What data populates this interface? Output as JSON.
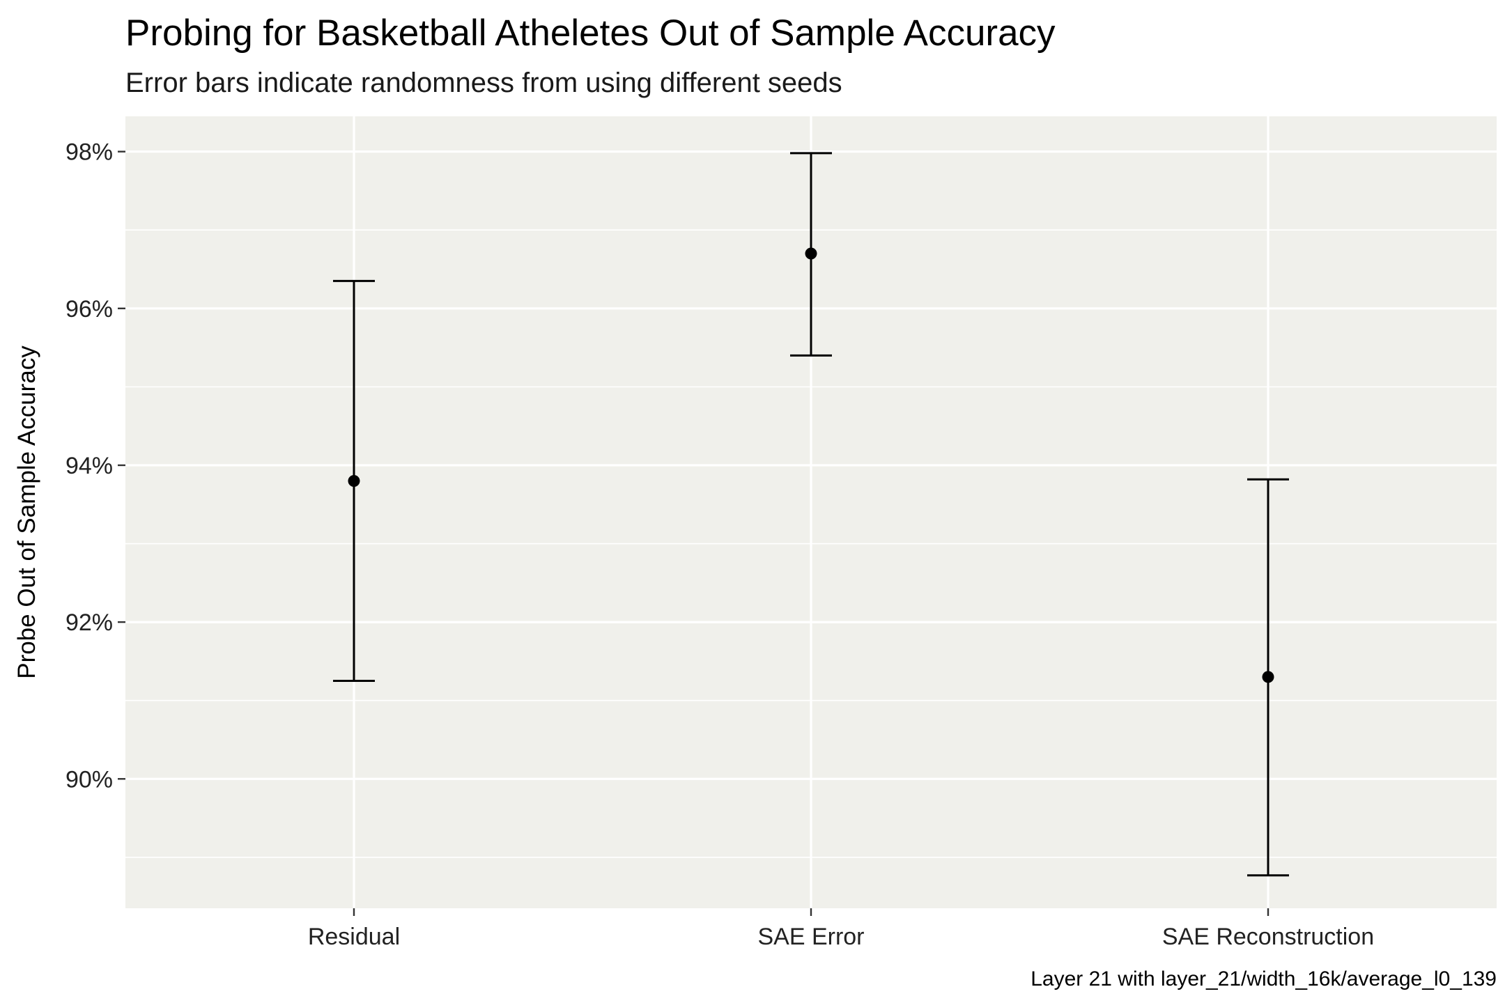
{
  "chart_data": {
    "type": "scatter",
    "title": "Probing for Basketball Atheletes Out of Sample Accuracy",
    "subtitle": "Error bars indicate randomness from using different seeds",
    "xlabel": "",
    "ylabel": "Probe Out of Sample Accuracy",
    "caption": "Layer 21 with layer_21/width_16k/average_l0_139",
    "categories": [
      "Residual",
      "SAE Error",
      "SAE Reconstruction"
    ],
    "points": [
      {
        "category": "Residual",
        "value": 93.8,
        "lower": 91.25,
        "upper": 96.35
      },
      {
        "category": "SAE Error",
        "value": 96.7,
        "lower": 95.4,
        "upper": 97.98
      },
      {
        "category": "SAE Reconstruction",
        "value": 91.3,
        "lower": 88.77,
        "upper": 93.82
      }
    ],
    "y_ticks": [
      90,
      92,
      94,
      96,
      98
    ],
    "y_tick_labels": [
      "90%",
      "92%",
      "94%",
      "96%",
      "98%"
    ],
    "ylim": [
      88.35,
      98.45
    ],
    "grid": true,
    "panel_background": "#f0f0eb",
    "grid_color": "#ffffff",
    "point_color": "#000000"
  }
}
